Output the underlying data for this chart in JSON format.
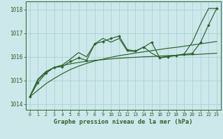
{
  "title": "Graphe pression niveau de la mer (hPa)",
  "bg": "#cce8ea",
  "grid_color": "#a8cccc",
  "lc": "#2d602d",
  "ylim": [
    1013.75,
    1018.35
  ],
  "yticks": [
    1014,
    1015,
    1016,
    1017,
    1018
  ],
  "xlim": [
    -0.5,
    23.5
  ],
  "x_labels": [
    "0",
    "1",
    "2",
    "3",
    "4",
    "5",
    "6",
    "7",
    "8",
    "9",
    "10",
    "11",
    "12",
    "13",
    "14",
    "15",
    "16",
    "17",
    "18",
    "19",
    "20",
    "21",
    "22",
    "23"
  ],
  "s_marker": [
    1014.3,
    1014.9,
    1015.3,
    1015.55,
    1015.58,
    1015.8,
    1015.95,
    1015.85,
    1016.55,
    1016.65,
    1016.78,
    1016.88,
    1016.3,
    1016.25,
    1016.4,
    1016.62,
    1015.95,
    1016.0,
    1016.05,
    1016.1,
    1016.15,
    1016.6,
    1017.35,
    1018.05
  ],
  "s_plain": [
    1014.3,
    1015.0,
    1015.35,
    1015.55,
    1015.65,
    1015.9,
    1016.18,
    1016.0,
    1016.55,
    1016.78,
    1016.62,
    1016.78,
    1016.25,
    1016.22,
    1016.42,
    1016.15,
    1015.97,
    1016.02,
    1016.06,
    1016.12,
    1016.62,
    1017.38,
    1018.05,
    1018.05
  ],
  "s_lin": [
    1014.3,
    1014.58,
    1014.86,
    1015.08,
    1015.28,
    1015.46,
    1015.6,
    1015.72,
    1015.82,
    1015.9,
    1015.98,
    1016.05,
    1016.1,
    1016.16,
    1016.21,
    1016.26,
    1016.31,
    1016.36,
    1016.4,
    1016.45,
    1016.5,
    1016.55,
    1016.6,
    1016.65
  ],
  "s_log": [
    1014.3,
    1015.05,
    1015.38,
    1015.54,
    1015.63,
    1015.7,
    1015.76,
    1015.81,
    1015.85,
    1015.88,
    1015.91,
    1015.94,
    1015.96,
    1015.98,
    1016.0,
    1016.01,
    1016.03,
    1016.05,
    1016.06,
    1016.08,
    1016.09,
    1016.11,
    1016.13,
    1016.15
  ]
}
